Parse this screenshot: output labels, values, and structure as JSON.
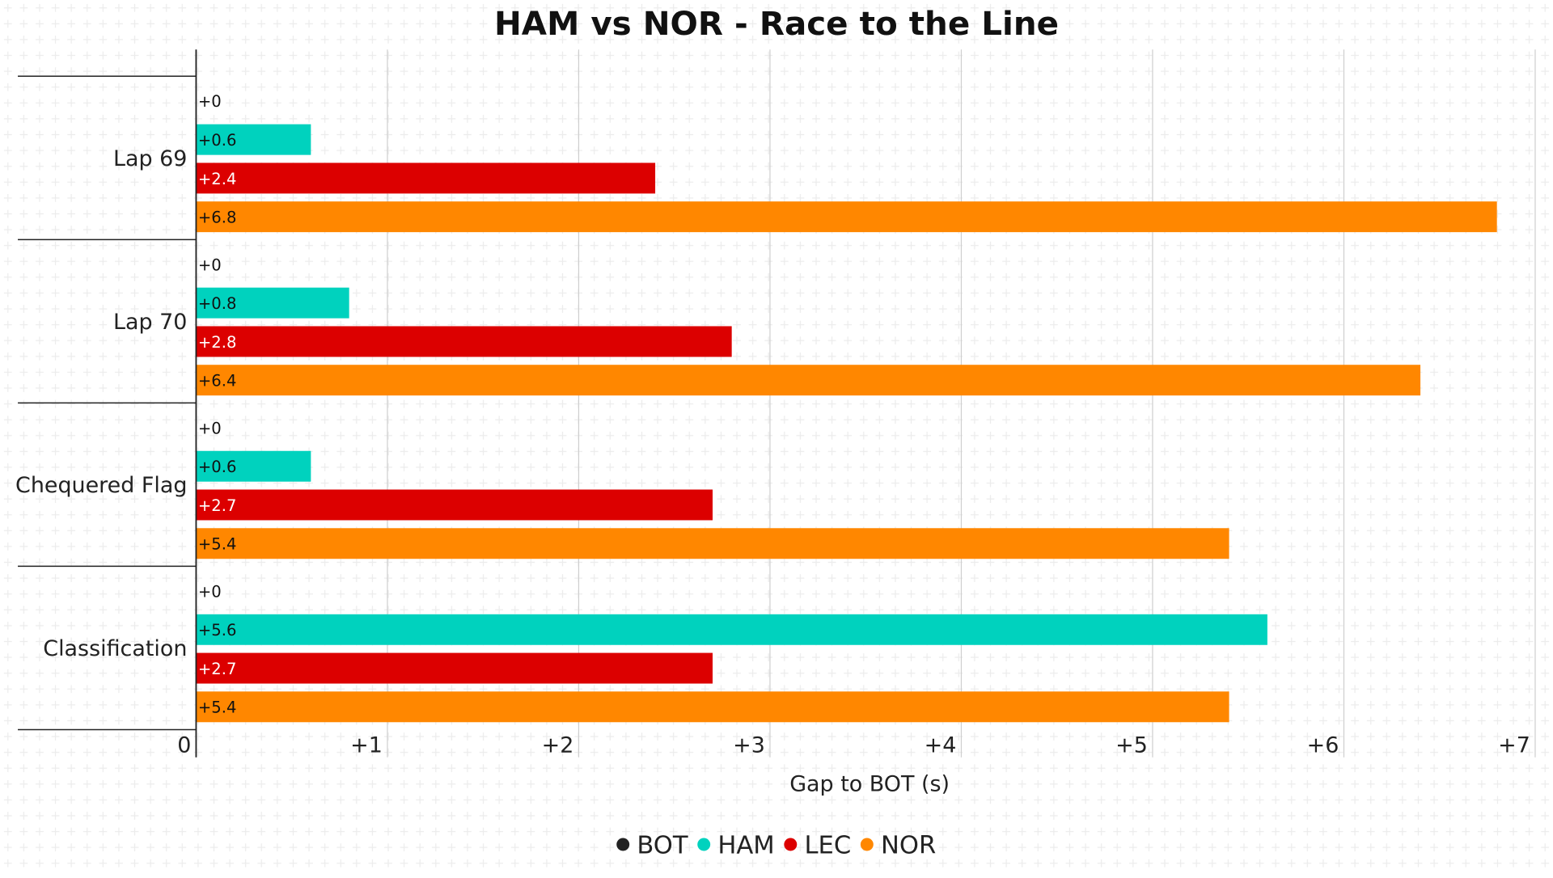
{
  "chart_data": {
    "type": "bar",
    "orientation": "horizontal",
    "title": "HAM vs NOR - Race to the Line",
    "xlabel": "Gap to BOT (s)",
    "ylabel": "",
    "xlim": [
      0,
      7
    ],
    "xticks": [
      "0",
      "+1",
      "+2",
      "+3",
      "+4",
      "+5",
      "+6",
      "+7"
    ],
    "grid": "vertical",
    "legend_position": "bottom",
    "categories": [
      "Lap 69",
      "Lap 70",
      "Chequered Flag",
      "Classification"
    ],
    "series": [
      {
        "name": "BOT",
        "color": "#222222",
        "values": [
          0,
          0,
          0,
          0
        ],
        "labels": [
          "+0",
          "+0",
          "+0",
          "+0"
        ]
      },
      {
        "name": "HAM",
        "color": "#00D2BE",
        "values": [
          0.6,
          0.8,
          0.6,
          5.6
        ],
        "labels": [
          "+0.6",
          "+0.8",
          "+0.6",
          "+5.6"
        ]
      },
      {
        "name": "LEC",
        "color": "#DC0000",
        "values": [
          2.4,
          2.8,
          2.7,
          2.7
        ],
        "labels": [
          "+2.4",
          "+2.8",
          "+2.7",
          "+2.7"
        ]
      },
      {
        "name": "NOR",
        "color": "#FF8700",
        "values": [
          6.8,
          6.4,
          5.4,
          5.4
        ],
        "labels": [
          "+6.8",
          "+6.4",
          "+5.4",
          "+5.4"
        ]
      }
    ]
  }
}
